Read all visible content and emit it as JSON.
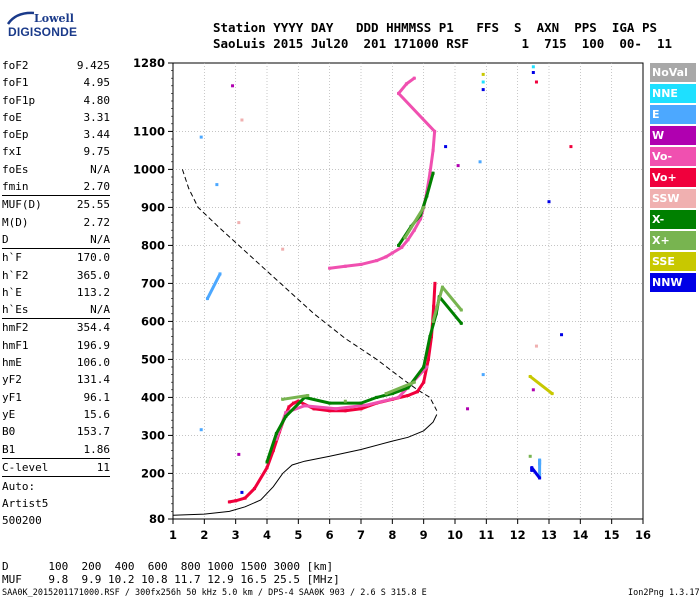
{
  "logo": {
    "line1": "Lowell",
    "line2": "DIGISONDE"
  },
  "header": {
    "line1": "Station YYYY DAY   DDD HHMMSS P1   FFS  S  AXN  PPS  IGA PS",
    "line2": "SaoLuis 2015 Jul20  201 171000 RSF       1  715  100  00-  11"
  },
  "params": [
    [
      {
        "key": "foF2",
        "value": "9.425"
      },
      {
        "key": "foF1",
        "value": "4.95"
      },
      {
        "key": "foF1p",
        "value": "4.80"
      },
      {
        "key": "foE",
        "value": "3.31"
      },
      {
        "key": "foEp",
        "value": "3.44"
      },
      {
        "key": "fxI",
        "value": "9.75"
      },
      {
        "key": "foEs",
        "value": "N/A"
      },
      {
        "key": "fmin",
        "value": "2.70"
      }
    ],
    [
      {
        "key": "MUF(D)",
        "value": "25.55"
      },
      {
        "key": "M(D)",
        "value": "2.72"
      },
      {
        "key": "D",
        "value": "N/A"
      }
    ],
    [
      {
        "key": "h`F",
        "value": "170.0"
      },
      {
        "key": "h`F2",
        "value": "365.0"
      },
      {
        "key": "h`E",
        "value": "113.2"
      },
      {
        "key": "h`Es",
        "value": "N/A"
      }
    ],
    [
      {
        "key": "hmF2",
        "value": "354.4"
      },
      {
        "key": "hmF1",
        "value": "196.9"
      },
      {
        "key": "hmE",
        "value": "106.0"
      },
      {
        "key": "yF2",
        "value": "131.4"
      },
      {
        "key": "yF1",
        "value": "96.1"
      },
      {
        "key": "yE",
        "value": "15.6"
      },
      {
        "key": "B0",
        "value": "153.7"
      },
      {
        "key": "B1",
        "value": "1.86"
      }
    ],
    [
      {
        "key": "C-level",
        "value": "11"
      }
    ]
  ],
  "autoscaling": {
    "line1": "Auto:",
    "line2": "Artist5",
    "line3": "500200"
  },
  "legend": [
    {
      "label": "NoVal",
      "color": "#a8a8a8"
    },
    {
      "label": "NNE",
      "color": "#1ee0ff"
    },
    {
      "label": "E",
      "color": "#4ca8ff"
    },
    {
      "label": "W",
      "color": "#b000b0"
    },
    {
      "label": "Vo-",
      "color": "#f050b0"
    },
    {
      "label": "Vo+",
      "color": "#f0003c"
    },
    {
      "label": "SSW",
      "color": "#f0b0b0"
    },
    {
      "label": "X-",
      "color": "#008000"
    },
    {
      "label": "X+",
      "color": "#78b450"
    },
    {
      "label": "SSE",
      "color": "#c8c800"
    },
    {
      "label": "NNW",
      "color": "#0000e6"
    }
  ],
  "bottom_table": {
    "line1": "D      100  200  400  600  800 1000 1500 3000 [km]",
    "line2": "MUF    9.8  9.9 10.2 10.8 11.7 12.9 16.5 25.5 [MHz]"
  },
  "footer": {
    "left": "SAA0K_2015201171000.RSF / 300fx256h 50 kHz 5.0 km / DPS-4 SAA0K 903 / 2.6 S 315.8 E",
    "right": "Ion2Png 1.3.17"
  },
  "chart_data": {
    "type": "scatter",
    "xlim": [
      1,
      16
    ],
    "ylim": [
      80,
      1280
    ],
    "x_ticks": [
      "1",
      "2",
      "3",
      "4",
      "5",
      "6",
      "7",
      "8",
      "9",
      "10",
      "11",
      "12",
      "13",
      "14",
      "15",
      "16"
    ],
    "y_ticks": [
      "80",
      "200",
      "300",
      "400",
      "500",
      "600",
      "700",
      "800",
      "900",
      "1000",
      "1100",
      "1280"
    ],
    "grid": "dotted",
    "series": [
      {
        "name": "Vo+",
        "color": "#f0003c",
        "points": [
          [
            2.8,
            125
          ],
          [
            3.0,
            128
          ],
          [
            3.3,
            135
          ],
          [
            3.6,
            160
          ],
          [
            4.0,
            215
          ],
          [
            4.2,
            260
          ],
          [
            4.4,
            310
          ],
          [
            4.55,
            345
          ],
          [
            4.7,
            375
          ],
          [
            4.85,
            385
          ],
          [
            5.0,
            390
          ],
          [
            5.5,
            370
          ],
          [
            6.0,
            365
          ],
          [
            6.5,
            365
          ],
          [
            7.0,
            370
          ],
          [
            7.5,
            385
          ],
          [
            8.0,
            395
          ],
          [
            8.5,
            405
          ],
          [
            8.8,
            415
          ],
          [
            9.0,
            440
          ],
          [
            9.15,
            500
          ],
          [
            9.25,
            560
          ],
          [
            9.32,
            640
          ],
          [
            9.36,
            700
          ]
        ]
      },
      {
        "name": "Vo-",
        "color": "#f050b0",
        "points": [
          [
            4.3,
            290
          ],
          [
            4.6,
            360
          ],
          [
            5.2,
            378
          ],
          [
            6.2,
            370
          ],
          [
            7.2,
            380
          ],
          [
            8.2,
            400
          ],
          [
            9.1,
            480
          ],
          [
            6.0,
            740
          ],
          [
            6.5,
            745
          ],
          [
            7.0,
            750
          ],
          [
            7.5,
            760
          ],
          [
            7.8,
            770
          ],
          [
            8.0,
            780
          ],
          [
            8.3,
            795
          ],
          [
            8.5,
            815
          ],
          [
            8.7,
            840
          ],
          [
            8.9,
            870
          ],
          [
            9.0,
            900
          ],
          [
            9.1,
            940
          ],
          [
            9.2,
            990
          ],
          [
            9.3,
            1050
          ],
          [
            9.35,
            1100
          ],
          [
            8.2,
            1200
          ],
          [
            8.45,
            1225
          ],
          [
            8.7,
            1240
          ]
        ]
      },
      {
        "name": "X-",
        "color": "#008000",
        "points": [
          [
            4.0,
            230
          ],
          [
            4.3,
            305
          ],
          [
            4.6,
            350
          ],
          [
            5.2,
            400
          ],
          [
            6.0,
            385
          ],
          [
            7.0,
            385
          ],
          [
            7.5,
            400
          ],
          [
            8.0,
            410
          ],
          [
            8.5,
            425
          ],
          [
            9.0,
            480
          ],
          [
            9.2,
            560
          ],
          [
            9.4,
            620
          ],
          [
            9.5,
            665
          ],
          [
            10.2,
            595
          ],
          [
            8.2,
            800
          ],
          [
            8.6,
            850
          ],
          [
            8.9,
            880
          ],
          [
            9.1,
            930
          ],
          [
            9.3,
            990
          ]
        ]
      },
      {
        "name": "X+",
        "color": "#78b450",
        "points": [
          [
            4.5,
            395
          ],
          [
            5.3,
            405
          ],
          [
            6.5,
            390
          ],
          [
            7.8,
            410
          ],
          [
            8.7,
            440
          ],
          [
            9.3,
            600
          ],
          [
            9.6,
            690
          ],
          [
            10.2,
            630
          ],
          [
            8.4,
            820
          ],
          [
            9.0,
            900
          ],
          [
            12.4,
            245
          ]
        ]
      },
      {
        "name": "W",
        "color": "#b000b0",
        "points": [
          [
            2.9,
            1220
          ],
          [
            10.1,
            1010
          ],
          [
            10.4,
            370
          ],
          [
            12.5,
            420
          ],
          [
            3.1,
            250
          ]
        ]
      },
      {
        "name": "E",
        "color": "#4ca8ff",
        "points": [
          [
            1.9,
            1085
          ],
          [
            2.4,
            960
          ],
          [
            2.5,
            725
          ],
          [
            2.1,
            660
          ],
          [
            1.9,
            315
          ],
          [
            10.8,
            1020
          ],
          [
            10.9,
            460
          ],
          [
            12.7,
            225
          ],
          [
            12.7,
            235
          ],
          [
            12.7,
            195
          ]
        ]
      },
      {
        "name": "NNE",
        "color": "#1ee0ff",
        "points": [
          [
            12.5,
            1270
          ],
          [
            10.9,
            1230
          ]
        ]
      },
      {
        "name": "NNW",
        "color": "#0000e6",
        "points": [
          [
            12.5,
            1255
          ],
          [
            10.9,
            1210
          ],
          [
            9.7,
            1060
          ],
          [
            13.0,
            915
          ],
          [
            13.4,
            565
          ],
          [
            12.45,
            208
          ],
          [
            12.45,
            215
          ],
          [
            12.7,
            188
          ],
          [
            3.2,
            150
          ]
        ]
      },
      {
        "name": "SSW",
        "color": "#f0b0b0",
        "points": [
          [
            3.2,
            1130
          ],
          [
            4.5,
            790
          ],
          [
            3.1,
            860
          ],
          [
            12.6,
            535
          ]
        ]
      },
      {
        "name": "SSE",
        "color": "#c8c800",
        "points": [
          [
            10.9,
            1250
          ],
          [
            13.1,
            410
          ],
          [
            12.4,
            455
          ]
        ]
      },
      {
        "name": "Vo+ extra",
        "color": "#f0003c",
        "points": [
          [
            13.7,
            1060
          ],
          [
            12.6,
            1230
          ]
        ]
      }
    ],
    "profile_line": {
      "style": "solid",
      "points": [
        [
          1,
          90
        ],
        [
          2,
          93
        ],
        [
          2.8,
          100
        ],
        [
          3.3,
          112
        ],
        [
          3.8,
          130
        ],
        [
          4.2,
          165
        ],
        [
          4.5,
          200
        ],
        [
          4.8,
          222
        ],
        [
          5.2,
          232
        ],
        [
          6,
          245
        ],
        [
          7,
          263
        ],
        [
          8,
          285
        ],
        [
          8.5,
          295
        ],
        [
          9,
          312
        ],
        [
          9.3,
          335
        ],
        [
          9.42,
          355
        ]
      ]
    },
    "dashed_line": {
      "style": "dashed",
      "points": [
        [
          1.3,
          1000
        ],
        [
          1.5,
          950
        ],
        [
          1.8,
          900
        ],
        [
          2.5,
          845
        ],
        [
          3.5,
          770
        ],
        [
          4.5,
          695
        ],
        [
          5.5,
          620
        ],
        [
          6.5,
          555
        ],
        [
          7.5,
          500
        ],
        [
          8.3,
          450
        ],
        [
          8.8,
          420
        ],
        [
          9.2,
          400
        ],
        [
          9.42,
          365
        ]
      ]
    }
  }
}
